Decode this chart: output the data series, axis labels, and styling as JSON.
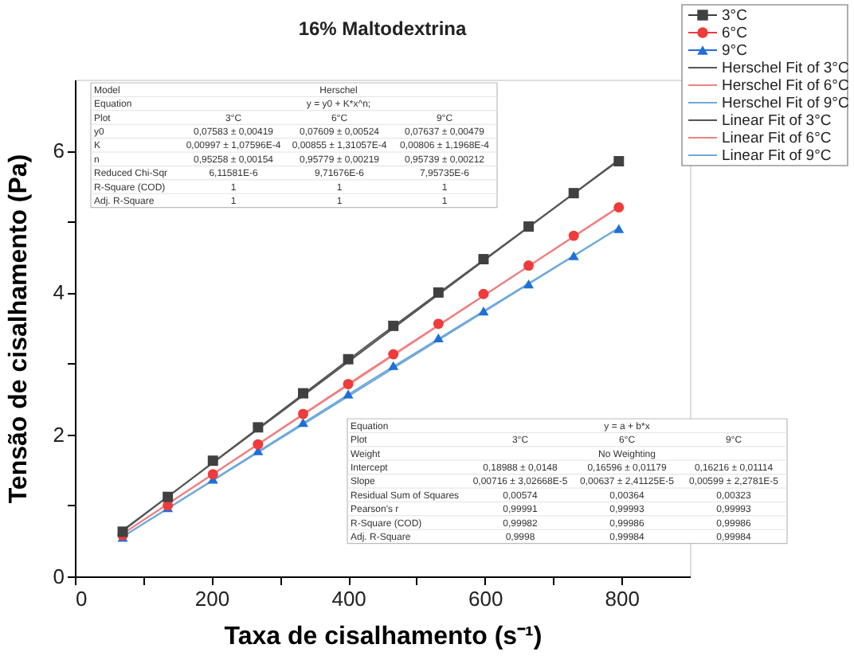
{
  "chart_data": {
    "type": "scatter",
    "title": "16% Maltodextrina",
    "xlabel": "Taxa de cisalhamento (s⁻¹)",
    "ylabel": "Tensão de cisalhamento (Pa)",
    "x": [
      70,
      136,
      202,
      268,
      334,
      400,
      466,
      532,
      598,
      664,
      730,
      796
    ],
    "series": [
      {
        "name": "3°C",
        "color": "#404040",
        "marker": "square",
        "values": [
          0.63,
          1.12,
          1.63,
          2.1,
          2.58,
          3.06,
          3.53,
          4.0,
          4.47,
          4.93,
          5.4,
          5.85
        ]
      },
      {
        "name": "6°C",
        "color": "#ee3b3b",
        "marker": "circle",
        "values": [
          0.58,
          1.0,
          1.44,
          1.86,
          2.29,
          2.71,
          3.13,
          3.56,
          3.98,
          4.38,
          4.8,
          5.2
        ]
      },
      {
        "name": "9°C",
        "color": "#1f6fd6",
        "marker": "triangle",
        "values": [
          0.55,
          0.97,
          1.37,
          1.77,
          2.17,
          2.57,
          2.97,
          3.36,
          3.74,
          4.12,
          4.52,
          4.9
        ]
      },
      {
        "name": "Herschel Fit of 3°C",
        "type": "line",
        "color": "#555555",
        "x": [
          70,
          433,
          796
        ],
        "values": [
          0.64,
          3.29,
          5.86
        ]
      },
      {
        "name": "Herschel Fit of 6°C",
        "type": "line",
        "color": "#f08080",
        "x": [
          70,
          433,
          796
        ],
        "values": [
          0.6,
          2.92,
          5.2
        ]
      },
      {
        "name": "Herschel Fit of 9°C",
        "type": "line",
        "color": "#6fa8dc",
        "x": [
          70,
          433,
          796
        ],
        "values": [
          0.56,
          2.76,
          4.91
        ]
      },
      {
        "name": "Linear Fit of 3°C",
        "type": "line",
        "color": "#555555",
        "x": [
          70,
          796
        ],
        "values": [
          0.65,
          5.87
        ]
      },
      {
        "name": "Linear Fit of 6°C",
        "type": "line",
        "color": "#f08080",
        "x": [
          70,
          796
        ],
        "values": [
          0.6,
          5.21
        ]
      },
      {
        "name": "Linear Fit of 9°C",
        "type": "line",
        "color": "#6fa8dc",
        "x": [
          70,
          796
        ],
        "values": [
          0.56,
          4.91
        ]
      }
    ],
    "xlim": [
      0,
      900
    ],
    "xticks": [
      0,
      {
        "value": 100,
        "label": null
      },
      200,
      {
        "value": 300,
        "label": null
      },
      400,
      {
        "value": 500,
        "label": null
      },
      600,
      {
        "value": 700,
        "label": null
      },
      800
    ],
    "ylim": [
      0,
      7
    ],
    "yticks": [
      0,
      {
        "value": 1,
        "label": null
      },
      2,
      {
        "value": 3,
        "label": null
      },
      4,
      {
        "value": 5,
        "label": null
      },
      6
    ],
    "legend": "top right",
    "grid": false,
    "annotations": [
      "Model",
      "Herschel",
      "Equation",
      "y = y0 + K*x^n;",
      "Plot",
      "3°C",
      "6°C",
      "9°C",
      "y0",
      "0,07583 ± 0,00419",
      "0,07609 ± 0,00524",
      "0,07637 ± 0,00479",
      "K",
      "0,00997 ± 1,07596E-4",
      "0,00855 ± 1,31057E-4",
      "0,00806 ± 1,1968E-4",
      "n",
      "0,95258 ± 0,00154",
      "0,95779 ± 0,00219",
      "0,95739 ± 0,00212",
      "Reduced Chi-Sqr",
      "6,11581E-6",
      "9,71676E-6",
      "7,95735E-6",
      "R-Square (COD)",
      "1",
      "1",
      "1",
      "Adj. R-Square",
      "1",
      "1",
      "1",
      "Equation",
      "y = a + b*x",
      "Plot",
      "3°C",
      "6°C",
      "9°C",
      "Weight",
      "No Weighting",
      "Intercept",
      "0,18988 ± 0,0148",
      "0,16596 ± 0,01179",
      "0,16216 ± 0,01114",
      "Slope",
      "0,00716 ± 3,02668E-5",
      "0,00637 ± 2,41125E-5",
      "0,00599 ± 2,2781E-5",
      "Residual Sum of Squares",
      "0,00574",
      "0,00364",
      "0,00323",
      "Pearson's r",
      "0,99991",
      "0,99993",
      "0,99993",
      "R-Square (COD)",
      "0,99982",
      "0,99986",
      "0,99986",
      "Adj. R-Square",
      "0,9998",
      "0,99984",
      "0,99984"
    ]
  }
}
